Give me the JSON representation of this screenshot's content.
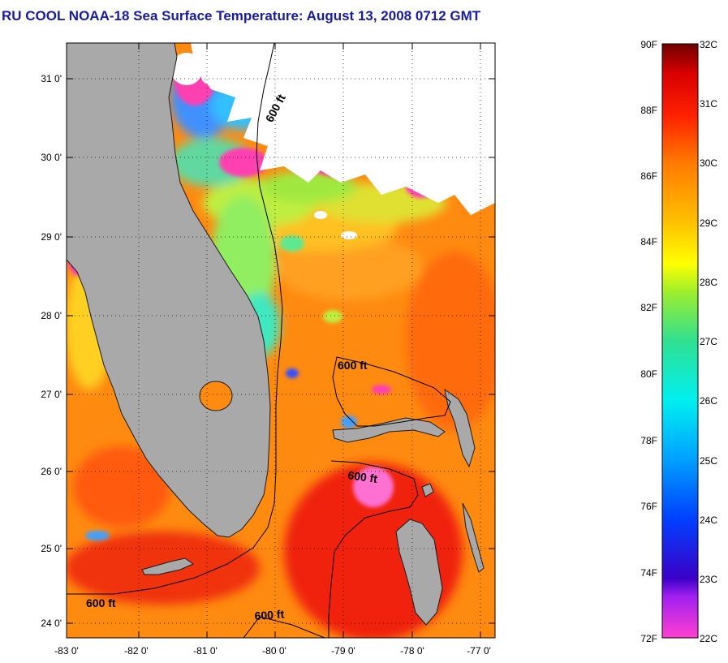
{
  "title": "RU COOL  NOAA-18  Sea Surface Temperature:  August 13, 2008 0712 GMT",
  "map": {
    "lon_range": [
      -83.0,
      -76.8
    ],
    "lat_range": [
      23.8,
      31.4
    ],
    "lon_ticks": [
      {
        "value": -83,
        "label": "-83 0'"
      },
      {
        "value": -82,
        "label": "-82 0'"
      },
      {
        "value": -81,
        "label": "-81 0'"
      },
      {
        "value": -80,
        "label": "-80 0'"
      },
      {
        "value": -79,
        "label": "-79 0'"
      },
      {
        "value": -78,
        "label": "-78 0'"
      },
      {
        "value": -77,
        "label": "-77 0'"
      }
    ],
    "lat_ticks": [
      {
        "value": 31,
        "label": "31 0'"
      },
      {
        "value": 30,
        "label": "30 0'"
      },
      {
        "value": 29,
        "label": "29 0'"
      },
      {
        "value": 28,
        "label": "28 0'"
      },
      {
        "value": 27,
        "label": "27 0'"
      },
      {
        "value": 26,
        "label": "26 0'"
      },
      {
        "value": 25,
        "label": "25 0'"
      },
      {
        "value": 24,
        "label": "24 0'"
      }
    ],
    "isobath_labels": [
      "600 ft",
      "600 ft",
      "600 ft",
      "600 ft",
      "600 ft"
    ],
    "colors": {
      "land": "#a9a9a9",
      "cloud": "#ffffff",
      "cold_edge": "#ff3fb0",
      "warm_sea": "#ff8a10"
    }
  },
  "colorbar": {
    "range_f": [
      72,
      90
    ],
    "range_c": [
      22,
      32
    ],
    "f_labels": [
      "90F",
      "88F",
      "86F",
      "84F",
      "82F",
      "80F",
      "78F",
      "76F",
      "74F",
      "72F"
    ],
    "c_labels": [
      "32C",
      "31C",
      "30C",
      "29C",
      "28C",
      "27C",
      "26C",
      "25C",
      "24C",
      "23C",
      "22C"
    ],
    "stops": [
      "#ff3fd0",
      "#a020f0",
      "#3a00c8",
      "#0040ff",
      "#00a0ff",
      "#00f0f0",
      "#30e090",
      "#9aee30",
      "#ffff00",
      "#ffc000",
      "#ff7a00",
      "#ff2000",
      "#d80000",
      "#700000"
    ]
  }
}
